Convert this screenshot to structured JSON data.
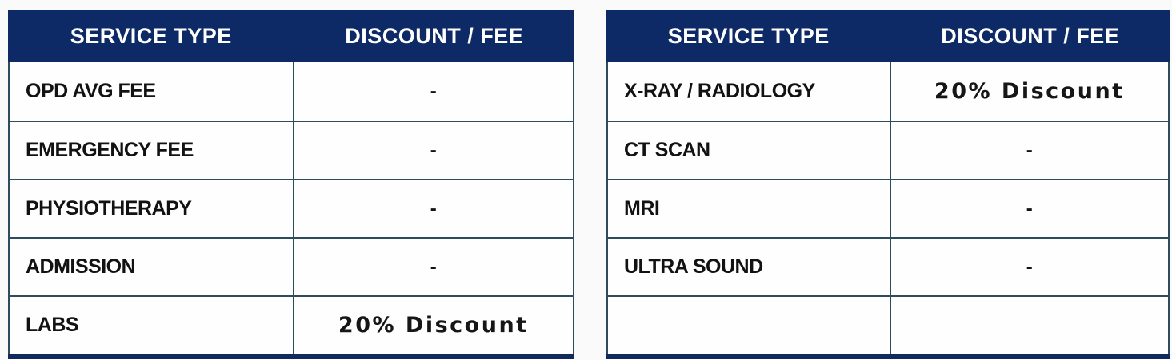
{
  "colors": {
    "header_bg": "#0d2a66",
    "header_text": "#ffffff",
    "border": "#2e4d5c",
    "bottom_bar": "#12295e",
    "cell_bg": "#fefefe",
    "label_text": "#121212"
  },
  "tables": [
    {
      "name": "general-services",
      "headers": [
        "SERVICE TYPE",
        "DISCOUNT / FEE"
      ],
      "rows": [
        {
          "service": "OPD AVG FEE",
          "value": "-"
        },
        {
          "service": "EMERGENCY FEE",
          "value": "-"
        },
        {
          "service": "PHYSIOTHERAPY",
          "value": "-"
        },
        {
          "service": "ADMISSION",
          "value": "-"
        },
        {
          "service": "LABS",
          "value": "20% Discount"
        }
      ]
    },
    {
      "name": "imaging-services",
      "headers": [
        "SERVICE TYPE",
        "DISCOUNT / FEE"
      ],
      "rows": [
        {
          "service": "X-RAY / RADIOLOGY",
          "value": "20% Discount"
        },
        {
          "service": "CT SCAN",
          "value": "-"
        },
        {
          "service": "MRI",
          "value": "-"
        },
        {
          "service": "ULTRA SOUND",
          "value": "-"
        },
        {
          "service": "",
          "value": ""
        }
      ]
    }
  ]
}
